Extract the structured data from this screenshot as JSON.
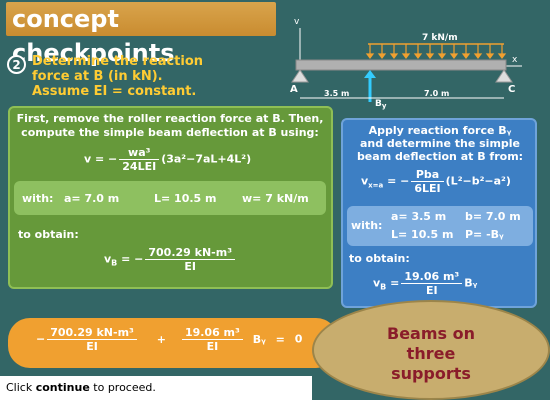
{
  "title": "concept checkpoints",
  "step": {
    "number": "2",
    "prompt": "Determine the reaction\nforce at B (in kN).\nAssume EI = constant."
  },
  "diagram": {
    "load_label": "7 kN/m",
    "axis_v": "v",
    "axis_x": "x",
    "point_a": "A",
    "point_c": "C",
    "reaction_label": "B",
    "reaction_sub": "y",
    "dim_left": "3.5 m",
    "dim_right": "7.0 m"
  },
  "green_panel": {
    "intro": "First, remove the roller reaction force at B.  Then,\ncompute the simple beam deflection at B using:",
    "eq_lhs": "v = −",
    "eq_num": "wa³",
    "eq_den": "24LEI",
    "eq_rhs": "(3a²−7aL+4L²)",
    "with_label": "with:",
    "a_val": "a= 7.0 m",
    "L_val": "L= 10.5 m",
    "w_val": "w= 7 kN/m",
    "obtain_label": "to obtain:",
    "vb_lhs": "v",
    "vb_sub": "B",
    "vb_eq": " = −",
    "vb_num": "700.29 kN-m³",
    "vb_den": "EI"
  },
  "blue_panel": {
    "intro": "Apply reaction force Bᵧ\nand determine the simple\nbeam deflection at B from:",
    "eq_lhs": "v",
    "eq_sub": "x=a",
    "eq_eq": " = −",
    "eq_num": "Pba",
    "eq_den": "6LEI",
    "eq_rhs": "(L²−b²−a²)",
    "with_label": "with:",
    "a_val": "a= 3.5 m",
    "b_val": "b= 7.0 m",
    "L_val": "L= 10.5 m",
    "P_val": "P= -Bᵧ",
    "obtain_label": "to obtain:",
    "vb_lhs": "v",
    "vb_sub": "B",
    "vb_eq": " =",
    "vb_num": "19.06 m³",
    "vb_den": "EI",
    "vb_rhs": "Bᵧ"
  },
  "bottom_eq": {
    "lead": "−",
    "num1": "700.29 kN-m³",
    "den1": "EI",
    "plus": "+",
    "num2": "19.06 m³",
    "den2": "EI",
    "by": "Bᵧ",
    "equals": "=",
    "zero": "0"
  },
  "badge": "Beams on\nthree\nsupports",
  "footer": {
    "pre": "Click ",
    "link": "continue",
    "post": " to proceed."
  },
  "colors": {
    "background": "#336666",
    "title_bg": "#d9a44c",
    "prompt": "#ffcc33",
    "green_panel": "#66993a",
    "blue_panel": "#3d7fc4",
    "bottom_bar": "#f0a030",
    "badge_bg": "#c8ad6e",
    "badge_text": "#8a1c2a"
  }
}
